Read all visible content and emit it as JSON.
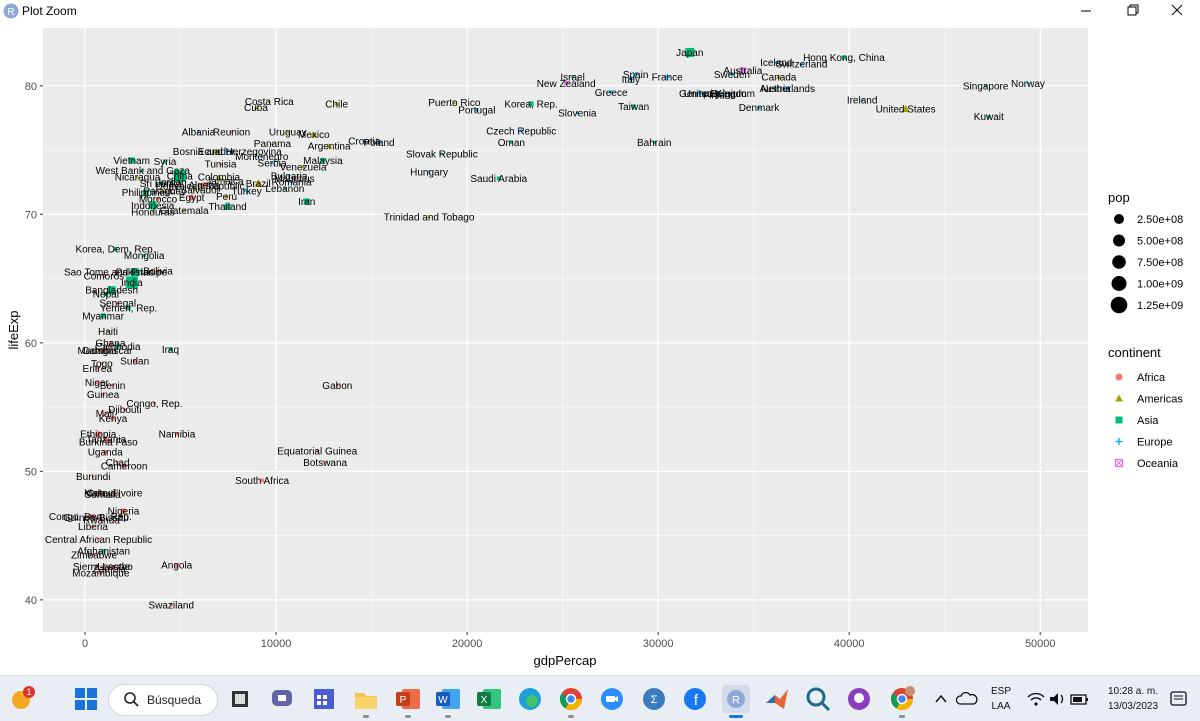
{
  "window": {
    "title": "Plot Zoom"
  },
  "chart_data": {
    "type": "scatter",
    "xlabel": "gdpPercap",
    "ylabel": "lifeExp",
    "xlim": [
      -2200,
      52500
    ],
    "ylim": [
      37.5,
      84.5
    ],
    "x_ticks": [
      0,
      10000,
      20000,
      30000,
      40000,
      50000
    ],
    "y_ticks": [
      40,
      50,
      60,
      70,
      80
    ],
    "grid": true,
    "legend_position": "right",
    "legends": {
      "size": {
        "title": "pop",
        "entries": [
          "2.50e+08",
          "5.00e+08",
          "7.50e+08",
          "1.00e+09",
          "1.25e+09"
        ]
      },
      "color": {
        "title": "continent",
        "entries": [
          {
            "name": "Africa",
            "color": "#F8766D",
            "shape": "circle"
          },
          {
            "name": "Americas",
            "color": "#A3A500",
            "shape": "triangle"
          },
          {
            "name": "Asia",
            "color": "#00BF7D",
            "shape": "square"
          },
          {
            "name": "Europe",
            "color": "#00B0F6",
            "shape": "plus"
          },
          {
            "name": "Oceania",
            "color": "#E76BF3",
            "shape": "boxx"
          }
        ]
      }
    },
    "points": [
      {
        "label": "Japan",
        "x": 31656,
        "y": 82.6,
        "c": "Asia",
        "s": 4.5
      },
      {
        "label": "Hong Kong, China",
        "x": 39725,
        "y": 82.2,
        "c": "Asia",
        "s": 2
      },
      {
        "label": "Iceland",
        "x": 36181,
        "y": 81.8,
        "c": "Europe",
        "s": 1.5
      },
      {
        "label": "Switzerland",
        "x": 37506,
        "y": 81.7,
        "c": "Europe",
        "s": 2
      },
      {
        "label": "Australia",
        "x": 34435,
        "y": 81.2,
        "c": "Oceania",
        "s": 2.5
      },
      {
        "label": "Spain",
        "x": 28821,
        "y": 80.9,
        "c": "Europe",
        "s": 2.5
      },
      {
        "label": "Sweden",
        "x": 33860,
        "y": 80.9,
        "c": "Europe",
        "s": 2
      },
      {
        "label": "Israel",
        "x": 25523,
        "y": 80.7,
        "c": "Asia",
        "s": 1.5
      },
      {
        "label": "France",
        "x": 30470,
        "y": 80.7,
        "c": "Europe",
        "s": 3
      },
      {
        "label": "Canada",
        "x": 36319,
        "y": 80.7,
        "c": "Americas",
        "s": 2.5
      },
      {
        "label": "Italy",
        "x": 28570,
        "y": 80.5,
        "c": "Europe",
        "s": 3
      },
      {
        "label": "New Zealand",
        "x": 25185,
        "y": 80.2,
        "c": "Oceania",
        "s": 1.5
      },
      {
        "label": "Norway",
        "x": 49357,
        "y": 80.2,
        "c": "Europe",
        "s": 1.5
      },
      {
        "label": "Singapore",
        "x": 47143,
        "y": 80.0,
        "c": "Asia",
        "s": 1.5
      },
      {
        "label": "Austria",
        "x": 36126,
        "y": 79.8,
        "c": "Europe",
        "s": 2
      },
      {
        "label": "Netherlands",
        "x": 36798,
        "y": 79.8,
        "c": "Europe",
        "s": 2
      },
      {
        "label": "Greece",
        "x": 27538,
        "y": 79.5,
        "c": "Europe",
        "s": 2
      },
      {
        "label": "Germany",
        "x": 32170,
        "y": 79.4,
        "c": "Europe",
        "s": 3
      },
      {
        "label": "United Kingdom",
        "x": 33203,
        "y": 79.4,
        "c": "Europe",
        "s": 3
      },
      {
        "label": "Finland",
        "x": 33207,
        "y": 79.3,
        "c": "Europe",
        "s": 1.5
      },
      {
        "label": "Belgium",
        "x": 33693,
        "y": 79.4,
        "c": "Europe",
        "s": 2
      },
      {
        "label": "Ireland",
        "x": 40676,
        "y": 78.9,
        "c": "Europe",
        "s": 1.5
      },
      {
        "label": "Puerto Rico",
        "x": 19329,
        "y": 78.7,
        "c": "Americas",
        "s": 1.5
      },
      {
        "label": "Korea, Rep.",
        "x": 23348,
        "y": 78.6,
        "c": "Asia",
        "s": 2.5
      },
      {
        "label": "Costa Rica",
        "x": 9645,
        "y": 78.8,
        "c": "Americas",
        "s": 1.5
      },
      {
        "label": "Chile",
        "x": 13172,
        "y": 78.6,
        "c": "Americas",
        "s": 2
      },
      {
        "label": "Cuba",
        "x": 8948,
        "y": 78.3,
        "c": "Americas",
        "s": 2
      },
      {
        "label": "Portugal",
        "x": 20510,
        "y": 78.1,
        "c": "Europe",
        "s": 2
      },
      {
        "label": "Taiwan",
        "x": 28718,
        "y": 78.4,
        "c": "Asia",
        "s": 2
      },
      {
        "label": "Denmark",
        "x": 35278,
        "y": 78.3,
        "c": "Europe",
        "s": 2
      },
      {
        "label": "Slovenia",
        "x": 25768,
        "y": 77.9,
        "c": "Europe",
        "s": 1.5
      },
      {
        "label": "United States",
        "x": 42952,
        "y": 78.2,
        "c": "Americas",
        "s": 3.5
      },
      {
        "label": "Kuwait",
        "x": 47307,
        "y": 77.6,
        "c": "Asia",
        "s": 1.5
      },
      {
        "label": "Albania",
        "x": 5937,
        "y": 76.4,
        "c": "Europe",
        "s": 1.5
      },
      {
        "label": "Reunion",
        "x": 7670,
        "y": 76.4,
        "c": "Africa",
        "s": 1.5
      },
      {
        "label": "Uruguay",
        "x": 10611,
        "y": 76.4,
        "c": "Americas",
        "s": 1.5
      },
      {
        "label": "Mexico",
        "x": 11978,
        "y": 76.2,
        "c": "Americas",
        "s": 3
      },
      {
        "label": "Czech Republic",
        "x": 22833,
        "y": 76.5,
        "c": "Europe",
        "s": 2
      },
      {
        "label": "Croatia",
        "x": 14619,
        "y": 75.7,
        "c": "Europe",
        "s": 1.5
      },
      {
        "label": "Poland",
        "x": 15390,
        "y": 75.6,
        "c": "Europe",
        "s": 2.5
      },
      {
        "label": "Panama",
        "x": 9809,
        "y": 75.5,
        "c": "Americas",
        "s": 1.5
      },
      {
        "label": "Oman",
        "x": 22316,
        "y": 75.6,
        "c": "Asia",
        "s": 1.5
      },
      {
        "label": "Bahrain",
        "x": 29796,
        "y": 75.6,
        "c": "Asia",
        "s": 1.5
      },
      {
        "label": "Argentina",
        "x": 12779,
        "y": 75.3,
        "c": "Americas",
        "s": 2.5
      },
      {
        "label": "Bosnia and Herzegovina",
        "x": 7446,
        "y": 74.9,
        "c": "Europe",
        "s": 1.5
      },
      {
        "label": "Ecuador",
        "x": 6873,
        "y": 74.9,
        "c": "Americas",
        "s": 2
      },
      {
        "label": "Slovak Republic",
        "x": 18678,
        "y": 74.7,
        "c": "Europe",
        "s": 1.5
      },
      {
        "label": "Montenegro",
        "x": 9254,
        "y": 74.5,
        "c": "Europe",
        "s": 1.5
      },
      {
        "label": "Malaysia",
        "x": 12452,
        "y": 74.2,
        "c": "Asia",
        "s": 2.5
      },
      {
        "label": "Vietnam",
        "x": 2442,
        "y": 74.2,
        "c": "Asia",
        "s": 3
      },
      {
        "label": "Syria",
        "x": 4185,
        "y": 74.1,
        "c": "Asia",
        "s": 2
      },
      {
        "label": "Serbia",
        "x": 9787,
        "y": 74.0,
        "c": "Europe",
        "s": 1.5
      },
      {
        "label": "Tunisia",
        "x": 7093,
        "y": 73.9,
        "c": "Africa",
        "s": 1.5
      },
      {
        "label": "Venezuela",
        "x": 11416,
        "y": 73.7,
        "c": "Americas",
        "s": 2
      },
      {
        "label": "West Bank and Gaza",
        "x": 3025,
        "y": 73.4,
        "c": "Asia",
        "s": 1.5
      },
      {
        "label": "Hungary",
        "x": 18008,
        "y": 73.3,
        "c": "Europe",
        "s": 1.5
      },
      {
        "label": "China",
        "x": 4959,
        "y": 73.0,
        "c": "Asia",
        "s": 6
      },
      {
        "label": "Nicaragua",
        "x": 2749,
        "y": 72.9,
        "c": "Americas",
        "s": 1.5
      },
      {
        "label": "Colombia",
        "x": 7007,
        "y": 72.9,
        "c": "Americas",
        "s": 2.5
      },
      {
        "label": "Bulgaria",
        "x": 10681,
        "y": 73.0,
        "c": "Europe",
        "s": 1.5
      },
      {
        "label": "Romania",
        "x": 10808,
        "y": 72.5,
        "c": "Europe",
        "s": 2
      },
      {
        "label": "Sri Lanka",
        "x": 3970,
        "y": 72.4,
        "c": "Asia",
        "s": 2
      },
      {
        "label": "Saudi Arabia",
        "x": 21655,
        "y": 72.8,
        "c": "Asia",
        "s": 2
      },
      {
        "label": "El Salvador",
        "x": 5728,
        "y": 71.9,
        "c": "Americas",
        "s": 1.5
      },
      {
        "label": "Jamaica",
        "x": 7321,
        "y": 72.6,
        "c": "Americas",
        "s": 1.5
      },
      {
        "label": "Paraguay",
        "x": 4173,
        "y": 71.8,
        "c": "Americas",
        "s": 1.5
      },
      {
        "label": "Brazil",
        "x": 9066,
        "y": 72.4,
        "c": "Americas",
        "s": 3.5
      },
      {
        "label": "Turkey",
        "x": 8458,
        "y": 71.8,
        "c": "Europe",
        "s": 3
      },
      {
        "label": "Lebanon",
        "x": 10461,
        "y": 72.0,
        "c": "Asia",
        "s": 1.5
      },
      {
        "label": "Mauritius",
        "x": 10957,
        "y": 72.8,
        "c": "Africa",
        "s": 1.5
      },
      {
        "label": "Algeria",
        "x": 6223,
        "y": 72.3,
        "c": "Africa",
        "s": 2.5
      },
      {
        "label": "Philippines",
        "x": 3190,
        "y": 71.7,
        "c": "Asia",
        "s": 3
      },
      {
        "label": "Dominican Republic",
        "x": 6025,
        "y": 72.2,
        "c": "Americas",
        "s": 1.5
      },
      {
        "label": "Jordan",
        "x": 4519,
        "y": 72.5,
        "c": "Asia",
        "s": 1.5
      },
      {
        "label": "Egypt",
        "x": 5581,
        "y": 71.3,
        "c": "Africa",
        "s": 3
      },
      {
        "label": "Peru",
        "x": 7409,
        "y": 71.4,
        "c": "Americas",
        "s": 2
      },
      {
        "label": "Morocco",
        "x": 3820,
        "y": 71.2,
        "c": "Africa",
        "s": 2
      },
      {
        "label": "Iran",
        "x": 11606,
        "y": 71.0,
        "c": "Asia",
        "s": 3
      },
      {
        "label": "Indonesia",
        "x": 3541,
        "y": 70.7,
        "c": "Asia",
        "s": 4
      },
      {
        "label": "Thailand",
        "x": 7458,
        "y": 70.6,
        "c": "Asia",
        "s": 3
      },
      {
        "label": "Honduras",
        "x": 3548,
        "y": 70.2,
        "c": "Americas",
        "s": 1.5
      },
      {
        "label": "Guatemala",
        "x": 5186,
        "y": 70.3,
        "c": "Americas",
        "s": 1.5
      },
      {
        "label": "Trinidad and Tobago",
        "x": 18009,
        "y": 69.8,
        "c": "Americas",
        "s": 1.5
      },
      {
        "label": "Korea, Dem. Rep.",
        "x": 1593,
        "y": 67.3,
        "c": "Asia",
        "s": 2
      },
      {
        "label": "Mongolia",
        "x": 3096,
        "y": 66.8,
        "c": "Asia",
        "s": 1.5
      },
      {
        "label": "Bolivia",
        "x": 3822,
        "y": 65.6,
        "c": "Americas",
        "s": 1.5
      },
      {
        "label": "Pakistan",
        "x": 2606,
        "y": 65.5,
        "c": "Asia",
        "s": 4
      },
      {
        "label": "Sao Tome and Principe",
        "x": 1598,
        "y": 65.5,
        "c": "Africa",
        "s": 1.5
      },
      {
        "label": "Comoros",
        "x": 986,
        "y": 65.2,
        "c": "Africa",
        "s": 1.5
      },
      {
        "label": "India",
        "x": 2452,
        "y": 64.7,
        "c": "Asia",
        "s": 6
      },
      {
        "label": "Bangladesh",
        "x": 1391,
        "y": 64.1,
        "c": "Asia",
        "s": 4
      },
      {
        "label": "Nepal",
        "x": 1091,
        "y": 63.8,
        "c": "Asia",
        "s": 2
      },
      {
        "label": "Senegal",
        "x": 1712,
        "y": 63.1,
        "c": "Africa",
        "s": 1.5
      },
      {
        "label": "Yemen, Rep.",
        "x": 2281,
        "y": 62.7,
        "c": "Asia",
        "s": 2
      },
      {
        "label": "Myanmar",
        "x": 944,
        "y": 62.1,
        "c": "Asia",
        "s": 2.5
      },
      {
        "label": "Haiti",
        "x": 1202,
        "y": 60.9,
        "c": "Americas",
        "s": 1.5
      },
      {
        "label": "Ghana",
        "x": 1328,
        "y": 60.0,
        "c": "Africa",
        "s": 2
      },
      {
        "label": "Cambodia",
        "x": 1714,
        "y": 59.7,
        "c": "Asia",
        "s": 2
      },
      {
        "label": "Madagascar",
        "x": 1044,
        "y": 59.4,
        "c": "Africa",
        "s": 2
      },
      {
        "label": "Gambia",
        "x": 753,
        "y": 59.4,
        "c": "Africa",
        "s": 1.5
      },
      {
        "label": "Iraq",
        "x": 4471,
        "y": 59.5,
        "c": "Asia",
        "s": 2
      },
      {
        "label": "Sudan",
        "x": 2602,
        "y": 58.6,
        "c": "Africa",
        "s": 2
      },
      {
        "label": "Togo",
        "x": 883,
        "y": 58.4,
        "c": "Africa",
        "s": 1.5
      },
      {
        "label": "Eritrea",
        "x": 641,
        "y": 58.0,
        "c": "Africa",
        "s": 1.5
      },
      {
        "label": "Niger",
        "x": 620,
        "y": 56.9,
        "c": "Africa",
        "s": 1.5
      },
      {
        "label": "Benin",
        "x": 1441,
        "y": 56.7,
        "c": "Africa",
        "s": 1.5
      },
      {
        "label": "Gabon",
        "x": 13206,
        "y": 56.7,
        "c": "Africa",
        "s": 1.5
      },
      {
        "label": "Guinea",
        "x": 943,
        "y": 56.0,
        "c": "Africa",
        "s": 1.5
      },
      {
        "label": "Congo, Rep.",
        "x": 3633,
        "y": 55.3,
        "c": "Africa",
        "s": 1.5
      },
      {
        "label": "Mali",
        "x": 1042,
        "y": 54.5,
        "c": "Africa",
        "s": 1.5
      },
      {
        "label": "Djibouti",
        "x": 2082,
        "y": 54.8,
        "c": "Africa",
        "s": 1.5
      },
      {
        "label": "Kenya",
        "x": 1463,
        "y": 54.1,
        "c": "Africa",
        "s": 2
      },
      {
        "label": "Ethiopia",
        "x": 690,
        "y": 52.9,
        "c": "Africa",
        "s": 3
      },
      {
        "label": "Namibia",
        "x": 4811,
        "y": 52.9,
        "c": "Africa",
        "s": 1.5
      },
      {
        "label": "Tanzania",
        "x": 1107,
        "y": 52.5,
        "c": "Africa",
        "s": 2
      },
      {
        "label": "Burkina Faso",
        "x": 1217,
        "y": 52.3,
        "c": "Africa",
        "s": 1.5
      },
      {
        "label": "Uganda",
        "x": 1056,
        "y": 51.5,
        "c": "Africa",
        "s": 2
      },
      {
        "label": "Equatorial Guinea",
        "x": 12154,
        "y": 51.6,
        "c": "Africa",
        "s": 1.5
      },
      {
        "label": "Botswana",
        "x": 12570,
        "y": 50.7,
        "c": "Africa",
        "s": 1.5
      },
      {
        "label": "Chad",
        "x": 1704,
        "y": 50.7,
        "c": "Africa",
        "s": 1.5
      },
      {
        "label": "Cameroon",
        "x": 2042,
        "y": 50.4,
        "c": "Africa",
        "s": 2
      },
      {
        "label": "Burundi",
        "x": 430,
        "y": 49.6,
        "c": "Africa",
        "s": 1.5
      },
      {
        "label": "South Africa",
        "x": 9270,
        "y": 49.3,
        "c": "Africa",
        "s": 2
      },
      {
        "label": "Cote d'Ivoire",
        "x": 1545,
        "y": 48.3,
        "c": "Africa",
        "s": 2
      },
      {
        "label": "Somalia",
        "x": 926,
        "y": 48.2,
        "c": "Africa",
        "s": 1.5
      },
      {
        "label": "Nigeria",
        "x": 2014,
        "y": 46.9,
        "c": "Africa",
        "s": 3
      },
      {
        "label": "Congo, Dem. Rep.",
        "x": 278,
        "y": 46.5,
        "c": "Africa",
        "s": 2.5
      },
      {
        "label": "Guinea-Bissau",
        "x": 579,
        "y": 46.4,
        "c": "Africa",
        "s": 1.5
      },
      {
        "label": "Malawi",
        "x": 759,
        "y": 48.3,
        "c": "Africa",
        "s": 1.5
      },
      {
        "label": "Rwanda",
        "x": 863,
        "y": 46.2,
        "c": "Africa",
        "s": 1.5
      },
      {
        "label": "Mozambique",
        "x": 824,
        "y": 42.1,
        "c": "Africa",
        "s": 2
      },
      {
        "label": "Liberia",
        "x": 415,
        "y": 45.7,
        "c": "Africa",
        "s": 1.5
      },
      {
        "label": "Central African Republic",
        "x": 706,
        "y": 44.7,
        "c": "Africa",
        "s": 1.5
      },
      {
        "label": "Afghanistan",
        "x": 975,
        "y": 43.8,
        "c": "Asia",
        "s": 2
      },
      {
        "label": "Zimbabwe",
        "x": 470,
        "y": 43.5,
        "c": "Africa",
        "s": 1.5
      },
      {
        "label": "Sierra Leone",
        "x": 863,
        "y": 42.6,
        "c": "Africa",
        "s": 1.5
      },
      {
        "label": "Lesotho",
        "x": 1569,
        "y": 42.6,
        "c": "Africa",
        "s": 1.5
      },
      {
        "label": "Zambia",
        "x": 1271,
        "y": 42.4,
        "c": "Africa",
        "s": 1.5
      },
      {
        "label": "Angola",
        "x": 4797,
        "y": 42.7,
        "c": "Africa",
        "s": 2
      },
      {
        "label": "Swaziland",
        "x": 4513,
        "y": 39.6,
        "c": "Africa",
        "s": 1.5
      }
    ]
  },
  "taskbar": {
    "notification_count": "1",
    "search_label": "Búsqueda",
    "lang_line1": "ESP",
    "lang_line2": "LAA",
    "time": "10:28 a. m.",
    "date": "13/03/2023"
  }
}
